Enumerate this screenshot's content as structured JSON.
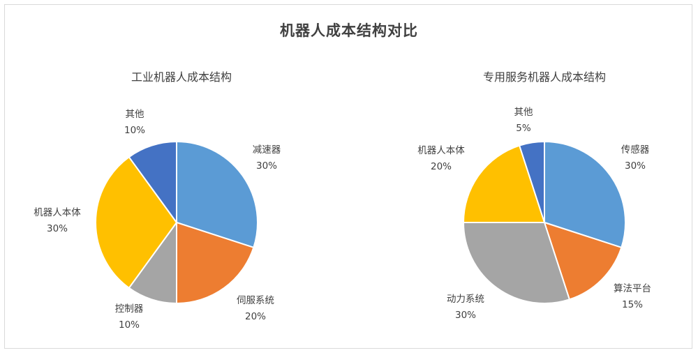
{
  "title": "机器人成本结构对比",
  "chart_data": [
    {
      "type": "pie",
      "title": "工业机器人成本结构",
      "center": [
        253,
        319
      ],
      "radius": 116,
      "slices": [
        {
          "label": "减速器",
          "value": 30,
          "display": "30%",
          "color": "#5B9BD5",
          "label_pos": [
            382,
            219
          ]
        },
        {
          "label": "伺服系统",
          "value": 20,
          "display": "20%",
          "color": "#ED7D31",
          "label_pos": [
            366,
            435
          ]
        },
        {
          "label": "控制器",
          "value": 10,
          "display": "10%",
          "color": "#A5A5A5",
          "label_pos": [
            185,
            447
          ]
        },
        {
          "label": "机器人本体",
          "value": 30,
          "display": "30%",
          "color": "#FFC000",
          "label_pos": [
            82,
            309
          ]
        },
        {
          "label": "其他",
          "value": 10,
          "display": "10%",
          "color": "#4472C4",
          "label_pos": [
            193,
            168
          ]
        }
      ]
    },
    {
      "type": "pie",
      "title": "专用服务机器人成本结构",
      "center": [
        780,
        319
      ],
      "radius": 116,
      "slices": [
        {
          "label": "传感器",
          "value": 30,
          "display": "30%",
          "color": "#5B9BD5",
          "label_pos": [
            910,
            219
          ]
        },
        {
          "label": "算法平台",
          "value": 15,
          "display": "15%",
          "color": "#ED7D31",
          "label_pos": [
            906,
            418
          ]
        },
        {
          "label": "动力系统",
          "value": 30,
          "display": "30%",
          "color": "#A5A5A5",
          "label_pos": [
            667,
            433
          ]
        },
        {
          "label": "机器人本体",
          "value": 20,
          "display": "20%",
          "color": "#FFC000",
          "label_pos": [
            632,
            220
          ]
        },
        {
          "label": "其他",
          "value": 5,
          "display": "5%",
          "color": "#4472C4",
          "label_pos": [
            750,
            165
          ]
        }
      ]
    }
  ]
}
